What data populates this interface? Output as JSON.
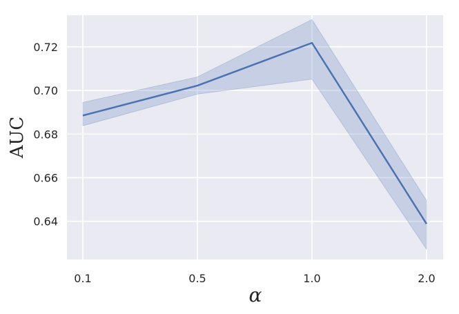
{
  "chart_data": {
    "type": "line",
    "categories": [
      "0.1",
      "0.5",
      "1.0",
      "2.0"
    ],
    "series": [
      {
        "values": [
          0.6885,
          0.7022,
          0.7218,
          0.6388
        ],
        "band_lower": [
          0.6838,
          0.6983,
          0.7052,
          0.6272
        ],
        "band_upper": [
          0.6945,
          0.7062,
          0.7325,
          0.6495
        ]
      }
    ],
    "xlabel": "α",
    "ylabel": "AUC",
    "ylim": [
      0.6225,
      0.7345
    ],
    "yticks": [
      0.64,
      0.66,
      0.68,
      0.7,
      0.72
    ],
    "ytick_labels": [
      "0.64",
      "0.66",
      "0.68",
      "0.70",
      "0.72"
    ],
    "grid": true,
    "colors": {
      "background": "#EAEAF2",
      "line": "#4C72B0",
      "band": "#4C72B0",
      "grid": "#FFFFFF"
    }
  }
}
